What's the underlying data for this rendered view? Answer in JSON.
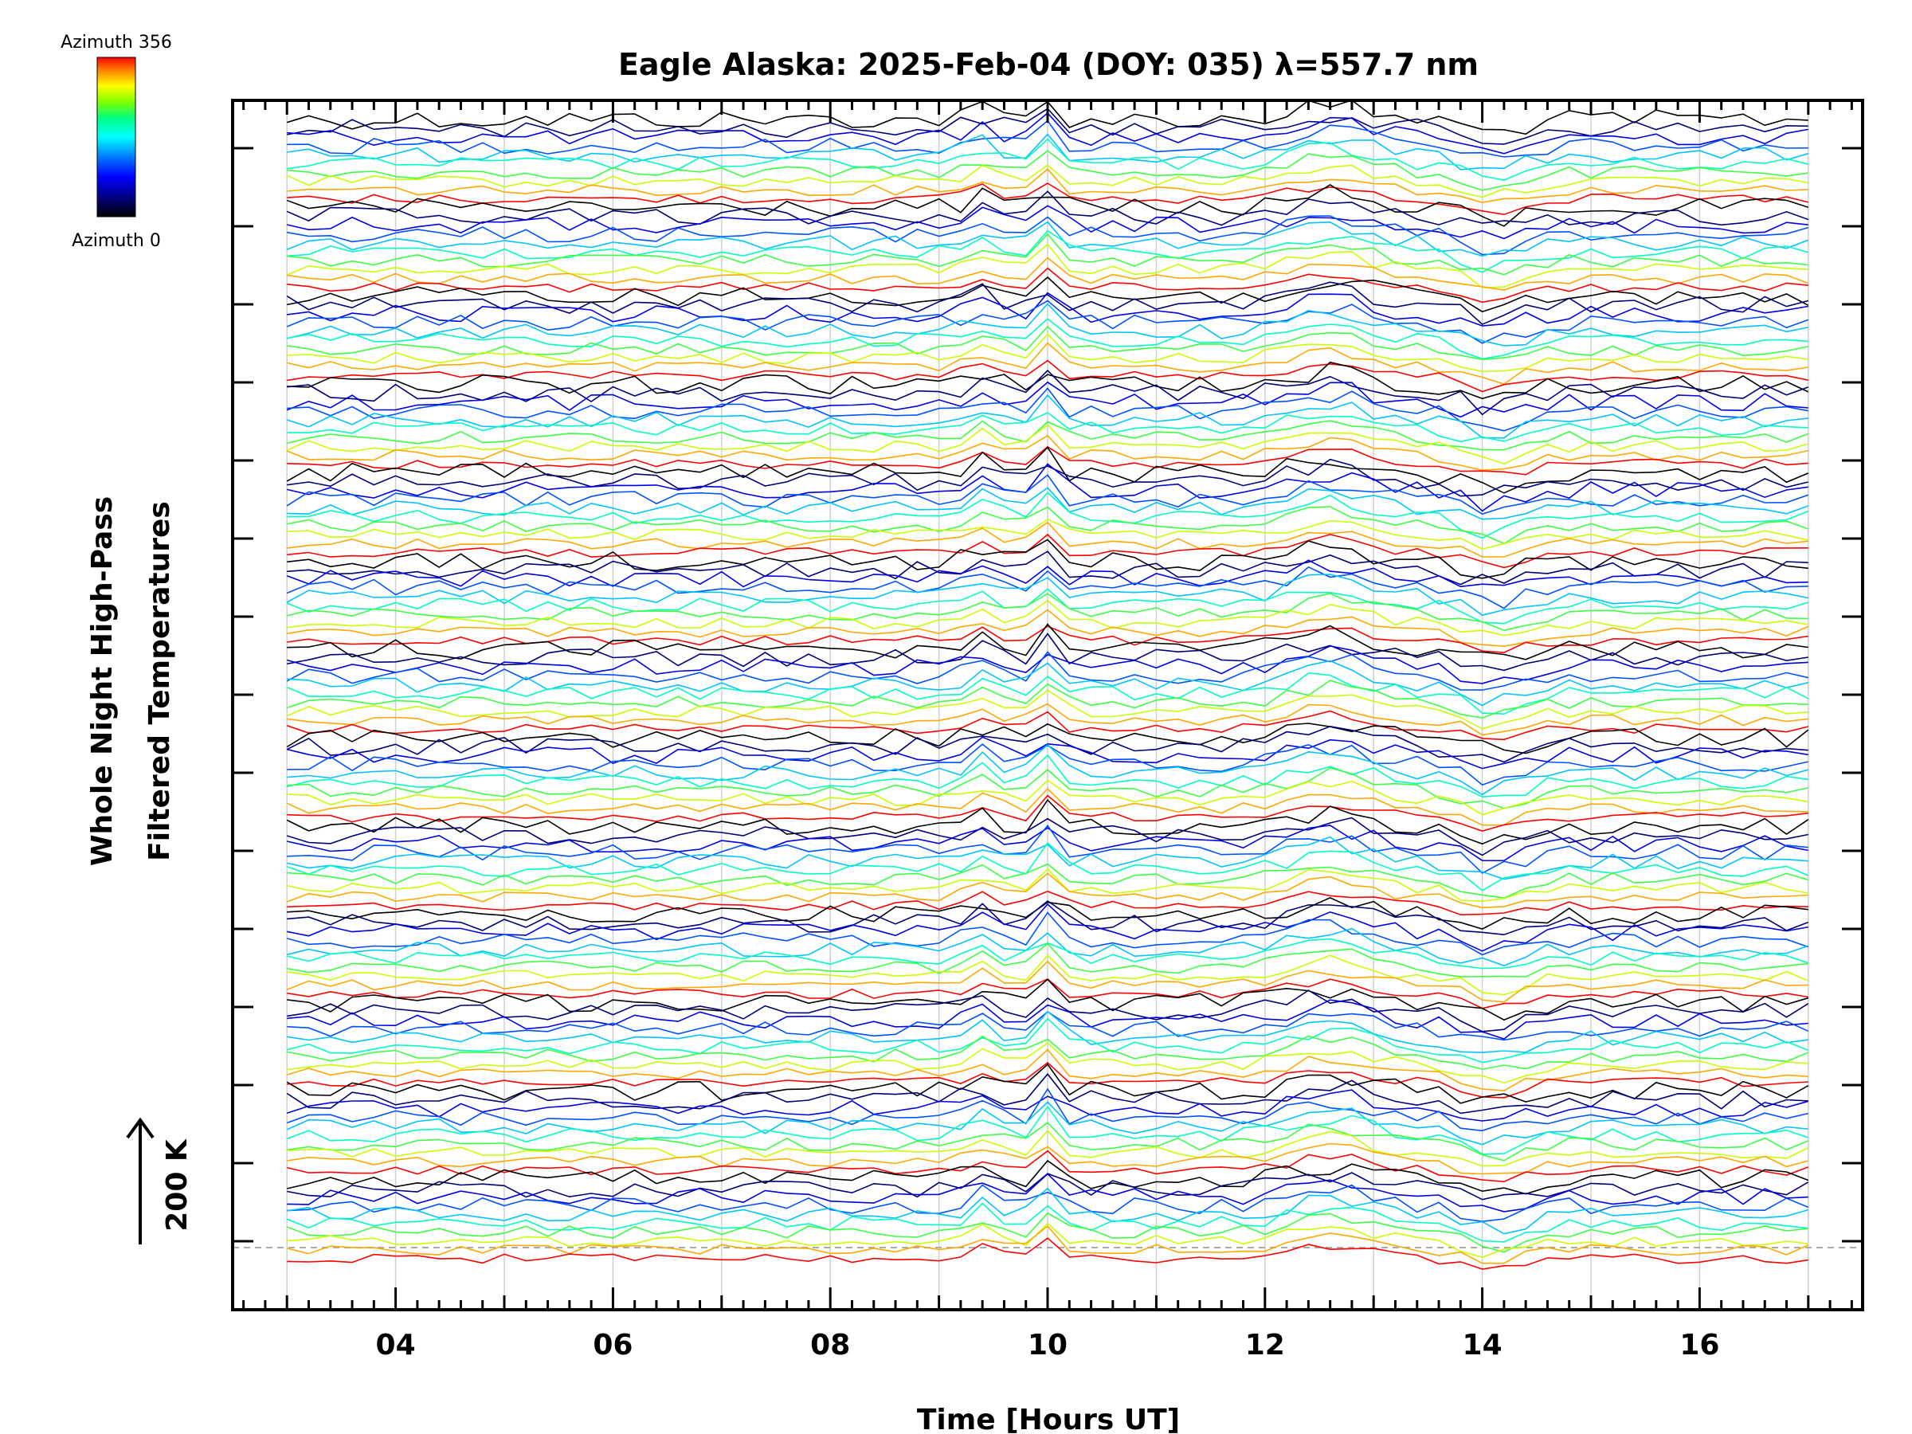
{
  "chart_data": {
    "type": "line",
    "title": "Eagle Alaska: 2025-Feb-04 (DOY: 035) λ=557.7 nm",
    "xlabel": "Time [Hours UT]",
    "ylabel_line1": "Whole Night High-Pass",
    "ylabel_line2": "Filtered Temperatures",
    "xlim": [
      2.5,
      17.5
    ],
    "x_tick_labels": [
      "04",
      "06",
      "08",
      "10",
      "12",
      "14",
      "16"
    ],
    "x_major_ticks": [
      4,
      6,
      8,
      10,
      12,
      14,
      16
    ],
    "scale_bar_label": "200 K",
    "colorbar": {
      "top_label": "Azimuth 356",
      "bottom_label": "Azimuth 0",
      "colors": [
        "#ff0000",
        "#ff8000",
        "#ffff00",
        "#80ff00",
        "#00ff80",
        "#00ffff",
        "#0080ff",
        "#0000ff",
        "#000080",
        "#000000"
      ]
    },
    "trace_groups": 13,
    "traces_per_group": 10,
    "x_start": 3.0,
    "x_end": 17.0,
    "grid": "vertical dotted at each hour",
    "zero_line": "dashed grey at bottom baseline"
  }
}
